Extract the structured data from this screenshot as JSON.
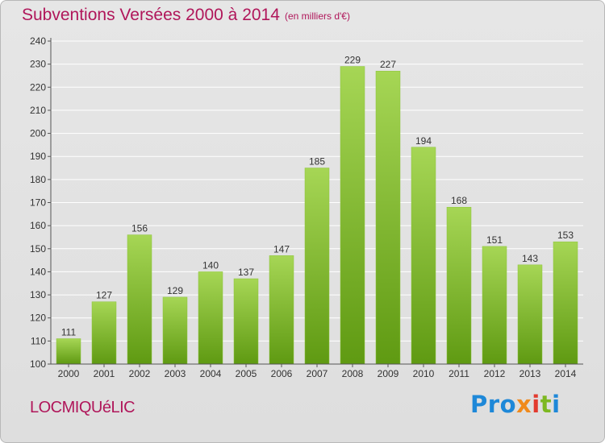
{
  "header": {
    "title": "Subventions Versées 2000 à 2014",
    "unit_note": "(en milliers d'€)"
  },
  "footer": {
    "commune": "LOCMIQUéLIC",
    "logo_text": "Proxiti"
  },
  "colors": {
    "title": "#b0165a",
    "bar_top": "#a6d655",
    "bar_bottom": "#5f9a12",
    "background": "#e3e3e3",
    "grid": "#ffffff"
  },
  "chart_data": {
    "type": "bar",
    "title": "Subventions Versées 2000 à 2014",
    "subtitle": "(en milliers d'€)",
    "categories": [
      "2000",
      "2001",
      "2002",
      "2003",
      "2004",
      "2005",
      "2006",
      "2007",
      "2008",
      "2009",
      "2010",
      "2011",
      "2012",
      "2013",
      "2014"
    ],
    "values": [
      111,
      127,
      156,
      129,
      140,
      137,
      147,
      185,
      229,
      227,
      194,
      168,
      151,
      143,
      153
    ],
    "ylim": [
      100,
      240
    ],
    "yticks": [
      100,
      110,
      120,
      130,
      140,
      150,
      160,
      170,
      180,
      190,
      200,
      210,
      220,
      230,
      240
    ],
    "grid": true,
    "data_labels": true
  }
}
